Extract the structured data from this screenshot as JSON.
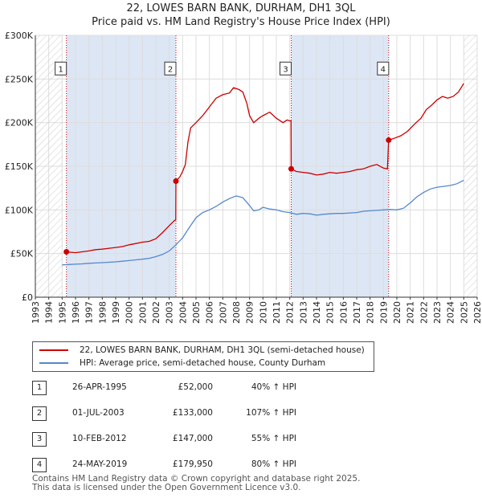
{
  "title_line1": "22, LOWES BARN BANK, DURHAM, DH1 3QL",
  "title_line2": "Price paid vs. HM Land Registry's House Price Index (HPI)",
  "colors": {
    "price": "#cc0000",
    "hpi": "#5588cc",
    "grid": "#dddddd",
    "shade": "#dde6f4",
    "hatch": "#cccccc"
  },
  "chart_data": {
    "type": "line",
    "title": "Price paid vs. HM Land Registry's House Price Index (HPI)",
    "xlabel": "",
    "ylabel": "",
    "xlim": [
      1993,
      2026
    ],
    "ylim": [
      0,
      300000
    ],
    "x_ticks": [
      "1993",
      "1994",
      "1995",
      "1996",
      "1997",
      "1998",
      "1999",
      "2000",
      "2001",
      "2002",
      "2003",
      "2004",
      "2005",
      "2006",
      "2007",
      "2008",
      "2009",
      "2010",
      "2011",
      "2012",
      "2013",
      "2014",
      "2015",
      "2016",
      "2017",
      "2018",
      "2019",
      "2020",
      "2021",
      "2022",
      "2023",
      "2024",
      "2025",
      "2026"
    ],
    "y_ticks": [
      {
        "value": 0,
        "label": "£0"
      },
      {
        "value": 50000,
        "label": "£50K"
      },
      {
        "value": 100000,
        "label": "£100K"
      },
      {
        "value": 150000,
        "label": "£150K"
      },
      {
        "value": 200000,
        "label": "£200K"
      },
      {
        "value": 250000,
        "label": "£250K"
      },
      {
        "value": 300000,
        "label": "£300K"
      }
    ],
    "grid": true,
    "hatched_ranges": [
      [
        1993,
        1995.0
      ],
      [
        2025.0,
        2026
      ]
    ],
    "series": [
      {
        "name": "22, LOWES BARN BANK, DURHAM, DH1 3QL (semi-detached house)",
        "points": [
          [
            1995.32,
            52000
          ],
          [
            1995.6,
            51500
          ],
          [
            1996.0,
            51000
          ],
          [
            1996.5,
            52000
          ],
          [
            1997.0,
            53000
          ],
          [
            1997.5,
            54500
          ],
          [
            1998.0,
            55000
          ],
          [
            1998.5,
            56000
          ],
          [
            1999.0,
            57000
          ],
          [
            1999.5,
            58000
          ],
          [
            2000.0,
            60000
          ],
          [
            2000.5,
            61500
          ],
          [
            2001.0,
            63000
          ],
          [
            2001.5,
            64000
          ],
          [
            2002.0,
            67000
          ],
          [
            2002.5,
            74000
          ],
          [
            2003.0,
            82000
          ],
          [
            2003.4,
            88000
          ],
          [
            2003.49,
            88500
          ],
          [
            2003.5,
            133000
          ],
          [
            2003.8,
            138000
          ],
          [
            2004.0,
            144000
          ],
          [
            2004.2,
            152000
          ],
          [
            2004.4,
            178000
          ],
          [
            2004.6,
            194000
          ],
          [
            2005.0,
            200000
          ],
          [
            2005.5,
            208000
          ],
          [
            2006.0,
            218000
          ],
          [
            2006.5,
            228000
          ],
          [
            2007.0,
            232000
          ],
          [
            2007.5,
            234000
          ],
          [
            2007.8,
            240000
          ],
          [
            2008.2,
            238000
          ],
          [
            2008.5,
            235000
          ],
          [
            2008.8,
            222000
          ],
          [
            2009.0,
            208000
          ],
          [
            2009.3,
            200000
          ],
          [
            2009.7,
            205000
          ],
          [
            2010.0,
            208000
          ],
          [
            2010.5,
            212000
          ],
          [
            2011.0,
            205000
          ],
          [
            2011.5,
            200000
          ],
          [
            2011.8,
            203000
          ],
          [
            2012.0,
            202000
          ],
          [
            2012.1,
            202000
          ],
          [
            2012.11,
            147000
          ],
          [
            2012.5,
            144000
          ],
          [
            2013.0,
            143000
          ],
          [
            2013.5,
            142000
          ],
          [
            2014.0,
            140000
          ],
          [
            2014.5,
            141000
          ],
          [
            2015.0,
            143000
          ],
          [
            2015.5,
            142000
          ],
          [
            2016.0,
            143000
          ],
          [
            2016.5,
            144000
          ],
          [
            2017.0,
            146000
          ],
          [
            2017.5,
            147000
          ],
          [
            2018.0,
            150000
          ],
          [
            2018.5,
            152000
          ],
          [
            2019.0,
            148000
          ],
          [
            2019.3,
            147000
          ],
          [
            2019.39,
            179950
          ],
          [
            2019.8,
            182000
          ],
          [
            2020.3,
            185000
          ],
          [
            2020.8,
            190000
          ],
          [
            2021.3,
            198000
          ],
          [
            2021.8,
            205000
          ],
          [
            2022.2,
            215000
          ],
          [
            2022.6,
            220000
          ],
          [
            2023.0,
            226000
          ],
          [
            2023.4,
            230000
          ],
          [
            2023.8,
            228000
          ],
          [
            2024.2,
            230000
          ],
          [
            2024.6,
            235000
          ],
          [
            2025.0,
            245000
          ]
        ]
      },
      {
        "name": "HPI: Average price, semi-detached house, County Durham",
        "points": [
          [
            1995.0,
            37000
          ],
          [
            1995.5,
            37500
          ],
          [
            1996.0,
            37800
          ],
          [
            1996.5,
            38200
          ],
          [
            1997.0,
            38800
          ],
          [
            1997.5,
            39200
          ],
          [
            1998.0,
            39600
          ],
          [
            1998.5,
            40000
          ],
          [
            1999.0,
            40500
          ],
          [
            1999.5,
            41200
          ],
          [
            2000.0,
            42000
          ],
          [
            2000.5,
            42800
          ],
          [
            2001.0,
            43500
          ],
          [
            2001.5,
            44500
          ],
          [
            2002.0,
            46500
          ],
          [
            2002.5,
            49000
          ],
          [
            2003.0,
            53000
          ],
          [
            2003.5,
            60000
          ],
          [
            2004.0,
            68000
          ],
          [
            2004.5,
            80000
          ],
          [
            2005.0,
            91000
          ],
          [
            2005.5,
            97000
          ],
          [
            2006.0,
            100000
          ],
          [
            2006.5,
            104000
          ],
          [
            2007.0,
            109000
          ],
          [
            2007.5,
            113000
          ],
          [
            2008.0,
            116000
          ],
          [
            2008.5,
            114000
          ],
          [
            2009.0,
            105000
          ],
          [
            2009.3,
            99000
          ],
          [
            2009.7,
            100000
          ],
          [
            2010.0,
            103000
          ],
          [
            2010.5,
            101000
          ],
          [
            2011.0,
            100000
          ],
          [
            2011.5,
            98000
          ],
          [
            2012.0,
            97000
          ],
          [
            2012.5,
            95000
          ],
          [
            2013.0,
            96000
          ],
          [
            2013.5,
            95500
          ],
          [
            2014.0,
            94000
          ],
          [
            2014.5,
            95000
          ],
          [
            2015.0,
            95500
          ],
          [
            2015.5,
            96000
          ],
          [
            2016.0,
            96000
          ],
          [
            2016.5,
            96500
          ],
          [
            2017.0,
            97000
          ],
          [
            2017.5,
            98500
          ],
          [
            2018.0,
            99000
          ],
          [
            2018.5,
            99500
          ],
          [
            2019.0,
            100000
          ],
          [
            2019.5,
            100500
          ],
          [
            2020.0,
            100000
          ],
          [
            2020.5,
            102000
          ],
          [
            2021.0,
            108000
          ],
          [
            2021.5,
            115000
          ],
          [
            2022.0,
            120000
          ],
          [
            2022.5,
            124000
          ],
          [
            2023.0,
            126000
          ],
          [
            2023.5,
            127000
          ],
          [
            2024.0,
            128000
          ],
          [
            2024.5,
            130000
          ],
          [
            2025.0,
            134000
          ]
        ]
      }
    ],
    "sales": [
      {
        "label": "1",
        "year": 1995.32,
        "price": 52000
      },
      {
        "label": "2",
        "year": 2003.5,
        "price": 133000
      },
      {
        "label": "3",
        "year": 2012.11,
        "price": 147000
      },
      {
        "label": "4",
        "year": 2019.39,
        "price": 179950
      }
    ],
    "shaded_ranges": [
      [
        1995.32,
        2003.5
      ],
      [
        2012.11,
        2019.39
      ]
    ],
    "marker_label_value": 262000
  },
  "legend": {
    "price_label": "22, LOWES BARN BANK, DURHAM, DH1 3QL (semi-detached house)",
    "hpi_label": "HPI: Average price, semi-detached house, County Durham"
  },
  "transactions": [
    {
      "num": "1",
      "date": "26-APR-1995",
      "price": "£52,000",
      "hpi": "40% ↑ HPI"
    },
    {
      "num": "2",
      "date": "01-JUL-2003",
      "price": "£133,000",
      "hpi": "107% ↑ HPI"
    },
    {
      "num": "3",
      "date": "10-FEB-2012",
      "price": "£147,000",
      "hpi": "55% ↑ HPI"
    },
    {
      "num": "4",
      "date": "24-MAY-2019",
      "price": "£179,950",
      "hpi": "80% ↑ HPI"
    }
  ],
  "footer": {
    "line1": "Contains HM Land Registry data © Crown copyright and database right 2025.",
    "line2": "This data is licensed under the Open Government Licence v3.0."
  }
}
